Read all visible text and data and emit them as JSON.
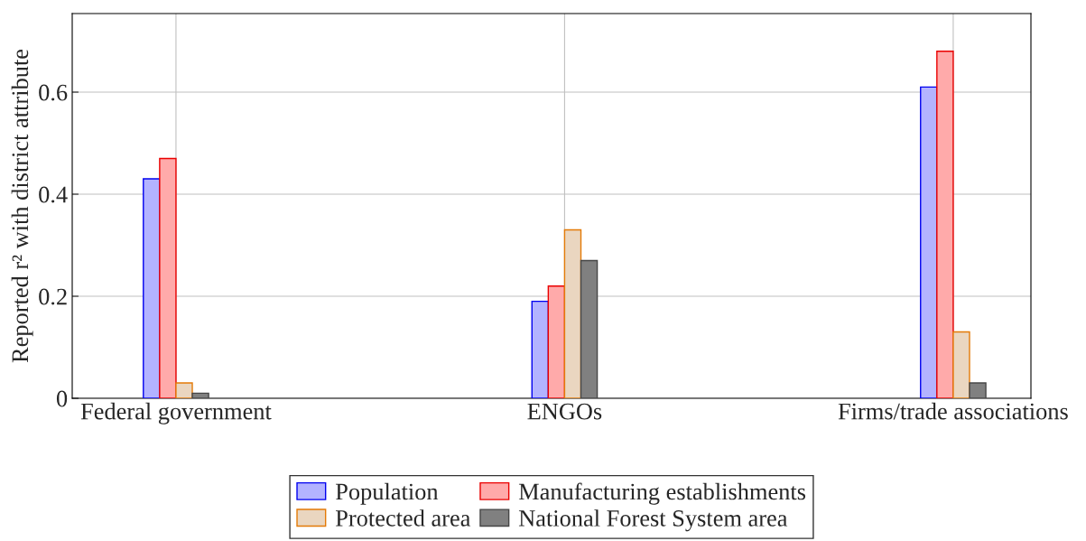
{
  "chart_data": {
    "type": "bar",
    "ylabel": "Reported r² with district attribute",
    "categories": [
      "Federal government",
      "ENGOs",
      "Firms/trade associations"
    ],
    "series": [
      {
        "name": "Population",
        "color": "#b3b3ff",
        "values": [
          0.43,
          0.19,
          0.61
        ]
      },
      {
        "name": "Manufacturing establishments",
        "color": "#ffaaaa",
        "values": [
          0.47,
          0.22,
          0.68
        ]
      },
      {
        "name": "Protected area",
        "color": "#ead6c0",
        "values": [
          0.03,
          0.33,
          0.13
        ]
      },
      {
        "name": "National Forest System area",
        "color": "#808080",
        "values": [
          0.01,
          0.27,
          0.03
        ]
      }
    ],
    "ylim": [
      0,
      0.754
    ],
    "yticks": [
      0,
      0.2,
      0.4,
      0.6
    ],
    "grid": true,
    "legend": "bottom"
  }
}
